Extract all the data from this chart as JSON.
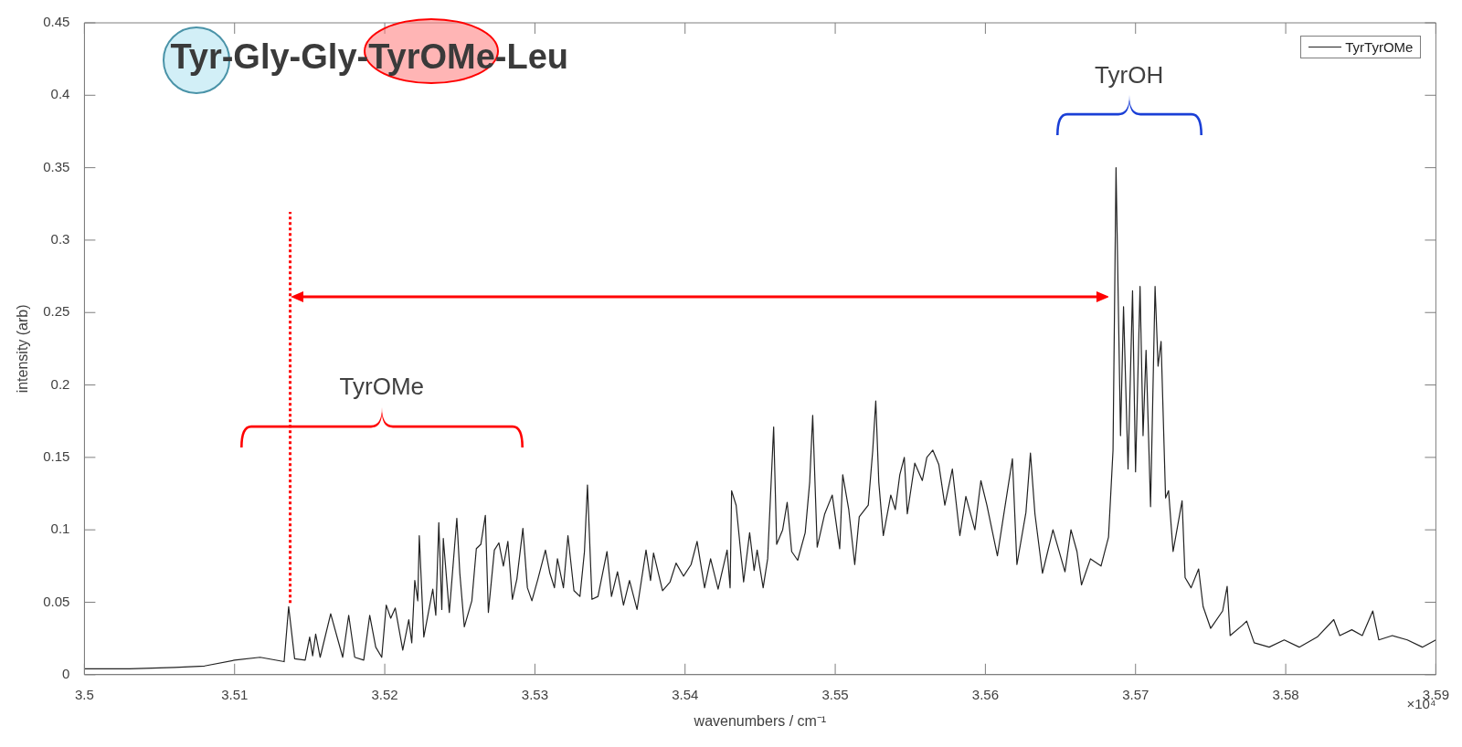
{
  "chart_data": {
    "type": "line",
    "title": "Tyr-Gly-Gly-TyrOMe-Leu",
    "xlabel": "wavenumbers / cm⁻¹",
    "ylabel": "intensity (arb)",
    "series": [
      {
        "name": "TyrTyrOMe",
        "color": "#222222",
        "x": [
          3.5,
          3.503,
          3.506,
          3.508,
          3.51,
          3.5117,
          3.5133,
          3.5136,
          3.514,
          3.5147,
          3.515,
          3.5152,
          3.5154,
          3.5157,
          3.5164,
          3.5172,
          3.5176,
          3.518,
          3.5186,
          3.519,
          3.5194,
          3.5198,
          3.5201,
          3.5204,
          3.5207,
          3.5212,
          3.5216,
          3.5218,
          3.522,
          3.5222,
          3.5223,
          3.5226,
          3.5232,
          3.5234,
          3.5236,
          3.5238,
          3.5239,
          3.5243,
          3.5248,
          3.525,
          3.5253,
          3.5258,
          3.5261,
          3.5264,
          3.5267,
          3.5269,
          3.5273,
          3.5276,
          3.5279,
          3.5282,
          3.5285,
          3.5288,
          3.5292,
          3.5295,
          3.5298,
          3.5302,
          3.5307,
          3.531,
          3.5313,
          3.5315,
          3.5319,
          3.5322,
          3.5326,
          3.533,
          3.5333,
          3.5335,
          3.5338,
          3.5342,
          3.5348,
          3.5351,
          3.5355,
          3.5359,
          3.5363,
          3.5368,
          3.5374,
          3.5377,
          3.5379,
          3.5385,
          3.539,
          3.5394,
          3.5399,
          3.5404,
          3.5408,
          3.5413,
          3.5417,
          3.5422,
          3.5428,
          3.543,
          3.5431,
          3.5434,
          3.5439,
          3.5443,
          3.5446,
          3.5448,
          3.5452,
          3.5455,
          3.5459,
          3.5461,
          3.5465,
          3.5468,
          3.5471,
          3.5475,
          3.548,
          3.5483,
          3.5485,
          3.5488,
          3.5493,
          3.5498,
          3.5503,
          3.5505,
          3.5509,
          3.5513,
          3.5516,
          3.5522,
          3.5525,
          3.5527,
          3.5529,
          3.5532,
          3.5537,
          3.554,
          3.5543,
          3.5546,
          3.5548,
          3.5553,
          3.5558,
          3.5561,
          3.5565,
          3.5569,
          3.5573,
          3.5578,
          3.5583,
          3.5587,
          3.5593,
          3.5597,
          3.5601,
          3.5608,
          3.5612,
          3.5618,
          3.5621,
          3.5627,
          3.563,
          3.5633,
          3.5638,
          3.5645,
          3.5653,
          3.5657,
          3.5661,
          3.5664,
          3.567,
          3.5677,
          3.5682,
          3.5685,
          3.5687,
          3.569,
          3.5692,
          3.5695,
          3.5698,
          3.57,
          3.5703,
          3.5705,
          3.5707,
          3.571,
          3.5713,
          3.5715,
          3.5717,
          3.572,
          3.5722,
          3.5725,
          3.5731,
          3.5733,
          3.5737,
          3.5742,
          3.5745,
          3.575,
          3.5758,
          3.5761,
          3.5763,
          3.5771,
          3.5774,
          3.5779,
          3.5789,
          3.5799,
          3.5809,
          3.5821,
          3.5832,
          3.5836,
          3.5844,
          3.5851,
          3.5858,
          3.5862,
          3.5871,
          3.5881,
          3.5891,
          3.59
        ],
        "values": [
          0.004,
          0.004,
          0.005,
          0.006,
          0.01,
          0.012,
          0.009,
          0.047,
          0.011,
          0.01,
          0.026,
          0.013,
          0.028,
          0.012,
          0.042,
          0.012,
          0.041,
          0.012,
          0.01,
          0.041,
          0.019,
          0.012,
          0.048,
          0.039,
          0.046,
          0.017,
          0.038,
          0.022,
          0.065,
          0.051,
          0.096,
          0.026,
          0.059,
          0.041,
          0.105,
          0.045,
          0.094,
          0.043,
          0.108,
          0.07,
          0.033,
          0.051,
          0.087,
          0.09,
          0.11,
          0.043,
          0.086,
          0.091,
          0.075,
          0.092,
          0.052,
          0.066,
          0.101,
          0.06,
          0.051,
          0.066,
          0.086,
          0.07,
          0.06,
          0.08,
          0.06,
          0.096,
          0.058,
          0.054,
          0.085,
          0.131,
          0.052,
          0.054,
          0.085,
          0.054,
          0.071,
          0.048,
          0.065,
          0.045,
          0.086,
          0.065,
          0.084,
          0.058,
          0.064,
          0.077,
          0.068,
          0.076,
          0.092,
          0.06,
          0.08,
          0.059,
          0.086,
          0.06,
          0.127,
          0.117,
          0.064,
          0.098,
          0.072,
          0.086,
          0.06,
          0.08,
          0.171,
          0.09,
          0.1,
          0.119,
          0.085,
          0.079,
          0.098,
          0.133,
          0.179,
          0.088,
          0.111,
          0.124,
          0.087,
          0.138,
          0.114,
          0.076,
          0.109,
          0.117,
          0.155,
          0.189,
          0.133,
          0.096,
          0.124,
          0.114,
          0.138,
          0.15,
          0.111,
          0.146,
          0.134,
          0.15,
          0.155,
          0.145,
          0.117,
          0.142,
          0.096,
          0.123,
          0.1,
          0.134,
          0.117,
          0.082,
          0.109,
          0.149,
          0.076,
          0.112,
          0.153,
          0.111,
          0.07,
          0.1,
          0.071,
          0.1,
          0.085,
          0.062,
          0.08,
          0.075,
          0.095,
          0.155,
          0.35,
          0.165,
          0.254,
          0.142,
          0.265,
          0.14,
          0.268,
          0.165,
          0.224,
          0.116,
          0.268,
          0.213,
          0.23,
          0.122,
          0.127,
          0.085,
          0.12,
          0.067,
          0.06,
          0.073,
          0.047,
          0.032,
          0.044,
          0.061,
          0.027,
          0.034,
          0.037,
          0.022,
          0.019,
          0.024,
          0.019,
          0.026,
          0.038,
          0.027,
          0.031,
          0.027,
          0.044,
          0.024,
          0.027,
          0.024,
          0.019,
          0.024
        ]
      }
    ],
    "xlim": [
      3.5,
      3.59
    ],
    "xticks": [
      3.5,
      3.51,
      3.52,
      3.53,
      3.54,
      3.55,
      3.56,
      3.57,
      3.58,
      3.59
    ],
    "ylim": [
      0,
      0.45
    ],
    "yticks": [
      0,
      0.05,
      0.1,
      0.15,
      0.2,
      0.25,
      0.3,
      0.35,
      0.4,
      0.45
    ],
    "ref_lines": [
      {
        "axis": "x",
        "value": 3.5137,
        "color": "#ff0000",
        "line_style": "dotted"
      }
    ],
    "annotations": [
      "TyrOMe",
      "TyrOH",
      "×10⁴"
    ],
    "legend": "top right",
    "grid": false,
    "marker": "none",
    "line_style": "solid"
  }
}
